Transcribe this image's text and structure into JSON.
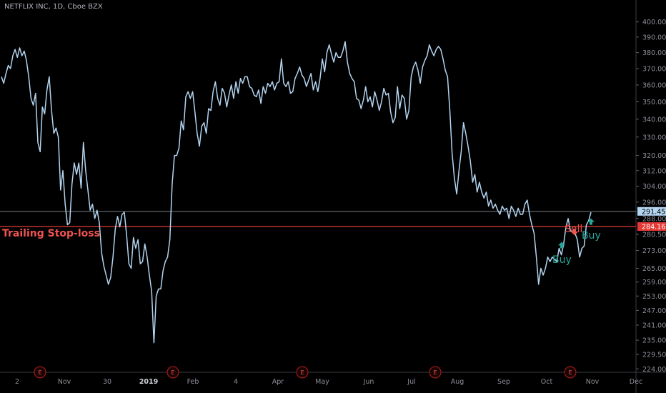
{
  "header": {
    "symbol": "NETFLIX INC, 1D, Cboe BZX"
  },
  "colors": {
    "price_line": "#b3d4f0",
    "stop_line": "#e53935",
    "sell": "#ef5350",
    "buy": "#26a69a",
    "axis_text": "#8c8f98",
    "background": "#000000"
  },
  "chart_data": {
    "type": "line",
    "y_scale": "log",
    "ylim": [
      223.0,
      410.0
    ],
    "y_ticks": [
      "224.00",
      "229.50",
      "235.00",
      "241.00",
      "247.00",
      "253.00",
      "259.00",
      "265.00",
      "273.00",
      "280.50",
      "288.00",
      "296.00",
      "304.00",
      "312.00",
      "320.00",
      "330.00",
      "340.00",
      "350.00",
      "360.00",
      "370.00",
      "380.00",
      "390.00",
      "400.00"
    ],
    "x_ticks": [
      "2",
      "Nov",
      "30",
      "2019",
      "Feb",
      "4",
      "Apr",
      "May",
      "Jun",
      "Jul",
      "Aug",
      "Sep",
      "Oct",
      "Nov",
      "Dec"
    ],
    "last_price": {
      "value": 291.45,
      "label": "291.45"
    },
    "trailing_stop": {
      "value": 284.16,
      "label": "284.16",
      "text": "Trailing Stop-loss"
    },
    "earnings_markers": [
      "E",
      "E",
      "E",
      "E",
      "E"
    ],
    "signals": [
      {
        "text": "Buy",
        "type": "buy",
        "price": 275
      },
      {
        "text": "Sell",
        "type": "sell",
        "price": 282
      },
      {
        "text": "Buy",
        "type": "buy",
        "price": 286
      }
    ],
    "series": [
      {
        "values": [
          365,
          361,
          367,
          372,
          370,
          378,
          382,
          377,
          383,
          378,
          381,
          375,
          365,
          352,
          348,
          355,
          327,
          322,
          347,
          343,
          357,
          365,
          345,
          332,
          335,
          330,
          302,
          312,
          295,
          285,
          286,
          305,
          316,
          310,
          316,
          303,
          327,
          312,
          302,
          292,
          295,
          288,
          292,
          286,
          272,
          266,
          262,
          258,
          261,
          270,
          283,
          289,
          284,
          290,
          291,
          280,
          267,
          265,
          279,
          274,
          278,
          267,
          268,
          276,
          270,
          262,
          255,
          234,
          253,
          256,
          256,
          264,
          268,
          270,
          278,
          305,
          320,
          320,
          324,
          339,
          334,
          353,
          356,
          352,
          356,
          344,
          332,
          325,
          336,
          338,
          332,
          346,
          345,
          356,
          362,
          352,
          348,
          358,
          355,
          347,
          354,
          360,
          352,
          362,
          355,
          364,
          361,
          365,
          365,
          359,
          358,
          354,
          353,
          357,
          349,
          359,
          355,
          361,
          359,
          362,
          357,
          361,
          362,
          376,
          361,
          359,
          362,
          355,
          356,
          364,
          367,
          371,
          366,
          364,
          359,
          363,
          367,
          357,
          362,
          356,
          364,
          376,
          368,
          380,
          385,
          379,
          374,
          380,
          377,
          377,
          381,
          387,
          374,
          367,
          364,
          362,
          352,
          351,
          346,
          351,
          359,
          350,
          353,
          347,
          356,
          351,
          345,
          350,
          358,
          354,
          355,
          344,
          338,
          341,
          359,
          346,
          354,
          352,
          340,
          345,
          365,
          371,
          374,
          369,
          361,
          371,
          375,
          378,
          385,
          381,
          378,
          382,
          384,
          382,
          376,
          369,
          365,
          345,
          321,
          308,
          300,
          312,
          322,
          338,
          332,
          325,
          317,
          306,
          310,
          301,
          306,
          301,
          298,
          301,
          294,
          297,
          293,
          295,
          292,
          290,
          294,
          292,
          293,
          288,
          294,
          292,
          289,
          293,
          290,
          290,
          295,
          297,
          290,
          285,
          281,
          270,
          258,
          265,
          262,
          265,
          270,
          268,
          270,
          269,
          268,
          274,
          271,
          276,
          284,
          288,
          282,
          282,
          281,
          278,
          270,
          274,
          275,
          285,
          287,
          291
        ]
      }
    ]
  }
}
